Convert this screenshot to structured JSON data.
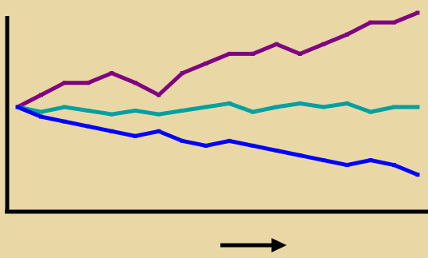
{
  "chart_data": {
    "type": "line",
    "title": "",
    "xlabel": "",
    "ylabel": "",
    "grid": false,
    "legend": "none",
    "x": [
      0,
      1,
      2,
      3,
      4,
      5,
      6,
      7,
      8,
      9,
      10,
      11,
      12,
      13,
      14,
      15,
      16,
      17
    ],
    "xlim": [
      0,
      17
    ],
    "ylim": [
      -3.8,
      4.2
    ],
    "series": [
      {
        "color": "#800080",
        "values": [
          0,
          0.5,
          1,
          1,
          1.4,
          1,
          0.5,
          1.4,
          1.8,
          2.2,
          2.2,
          2.6,
          2.2,
          2.6,
          3.0,
          3.5,
          3.5,
          3.9
        ]
      },
      {
        "color": "#00a0a0",
        "values": [
          0,
          -0.2,
          0,
          -0.15,
          -0.3,
          -0.15,
          -0.3,
          -0.15,
          0,
          0.15,
          -0.2,
          0,
          0.15,
          0,
          0.15,
          -0.2,
          0,
          0
        ]
      },
      {
        "color": "#0000ff",
        "values": [
          0,
          -0.4,
          -0.6,
          -0.8,
          -1.0,
          -1.2,
          -1.0,
          -1.4,
          -1.6,
          -1.4,
          -1.6,
          -1.8,
          -2.0,
          -2.2,
          -2.4,
          -2.2,
          -2.4,
          -2.8
        ]
      }
    ],
    "axis_color": "#000000",
    "arrow_icon": "right-arrow-icon"
  }
}
